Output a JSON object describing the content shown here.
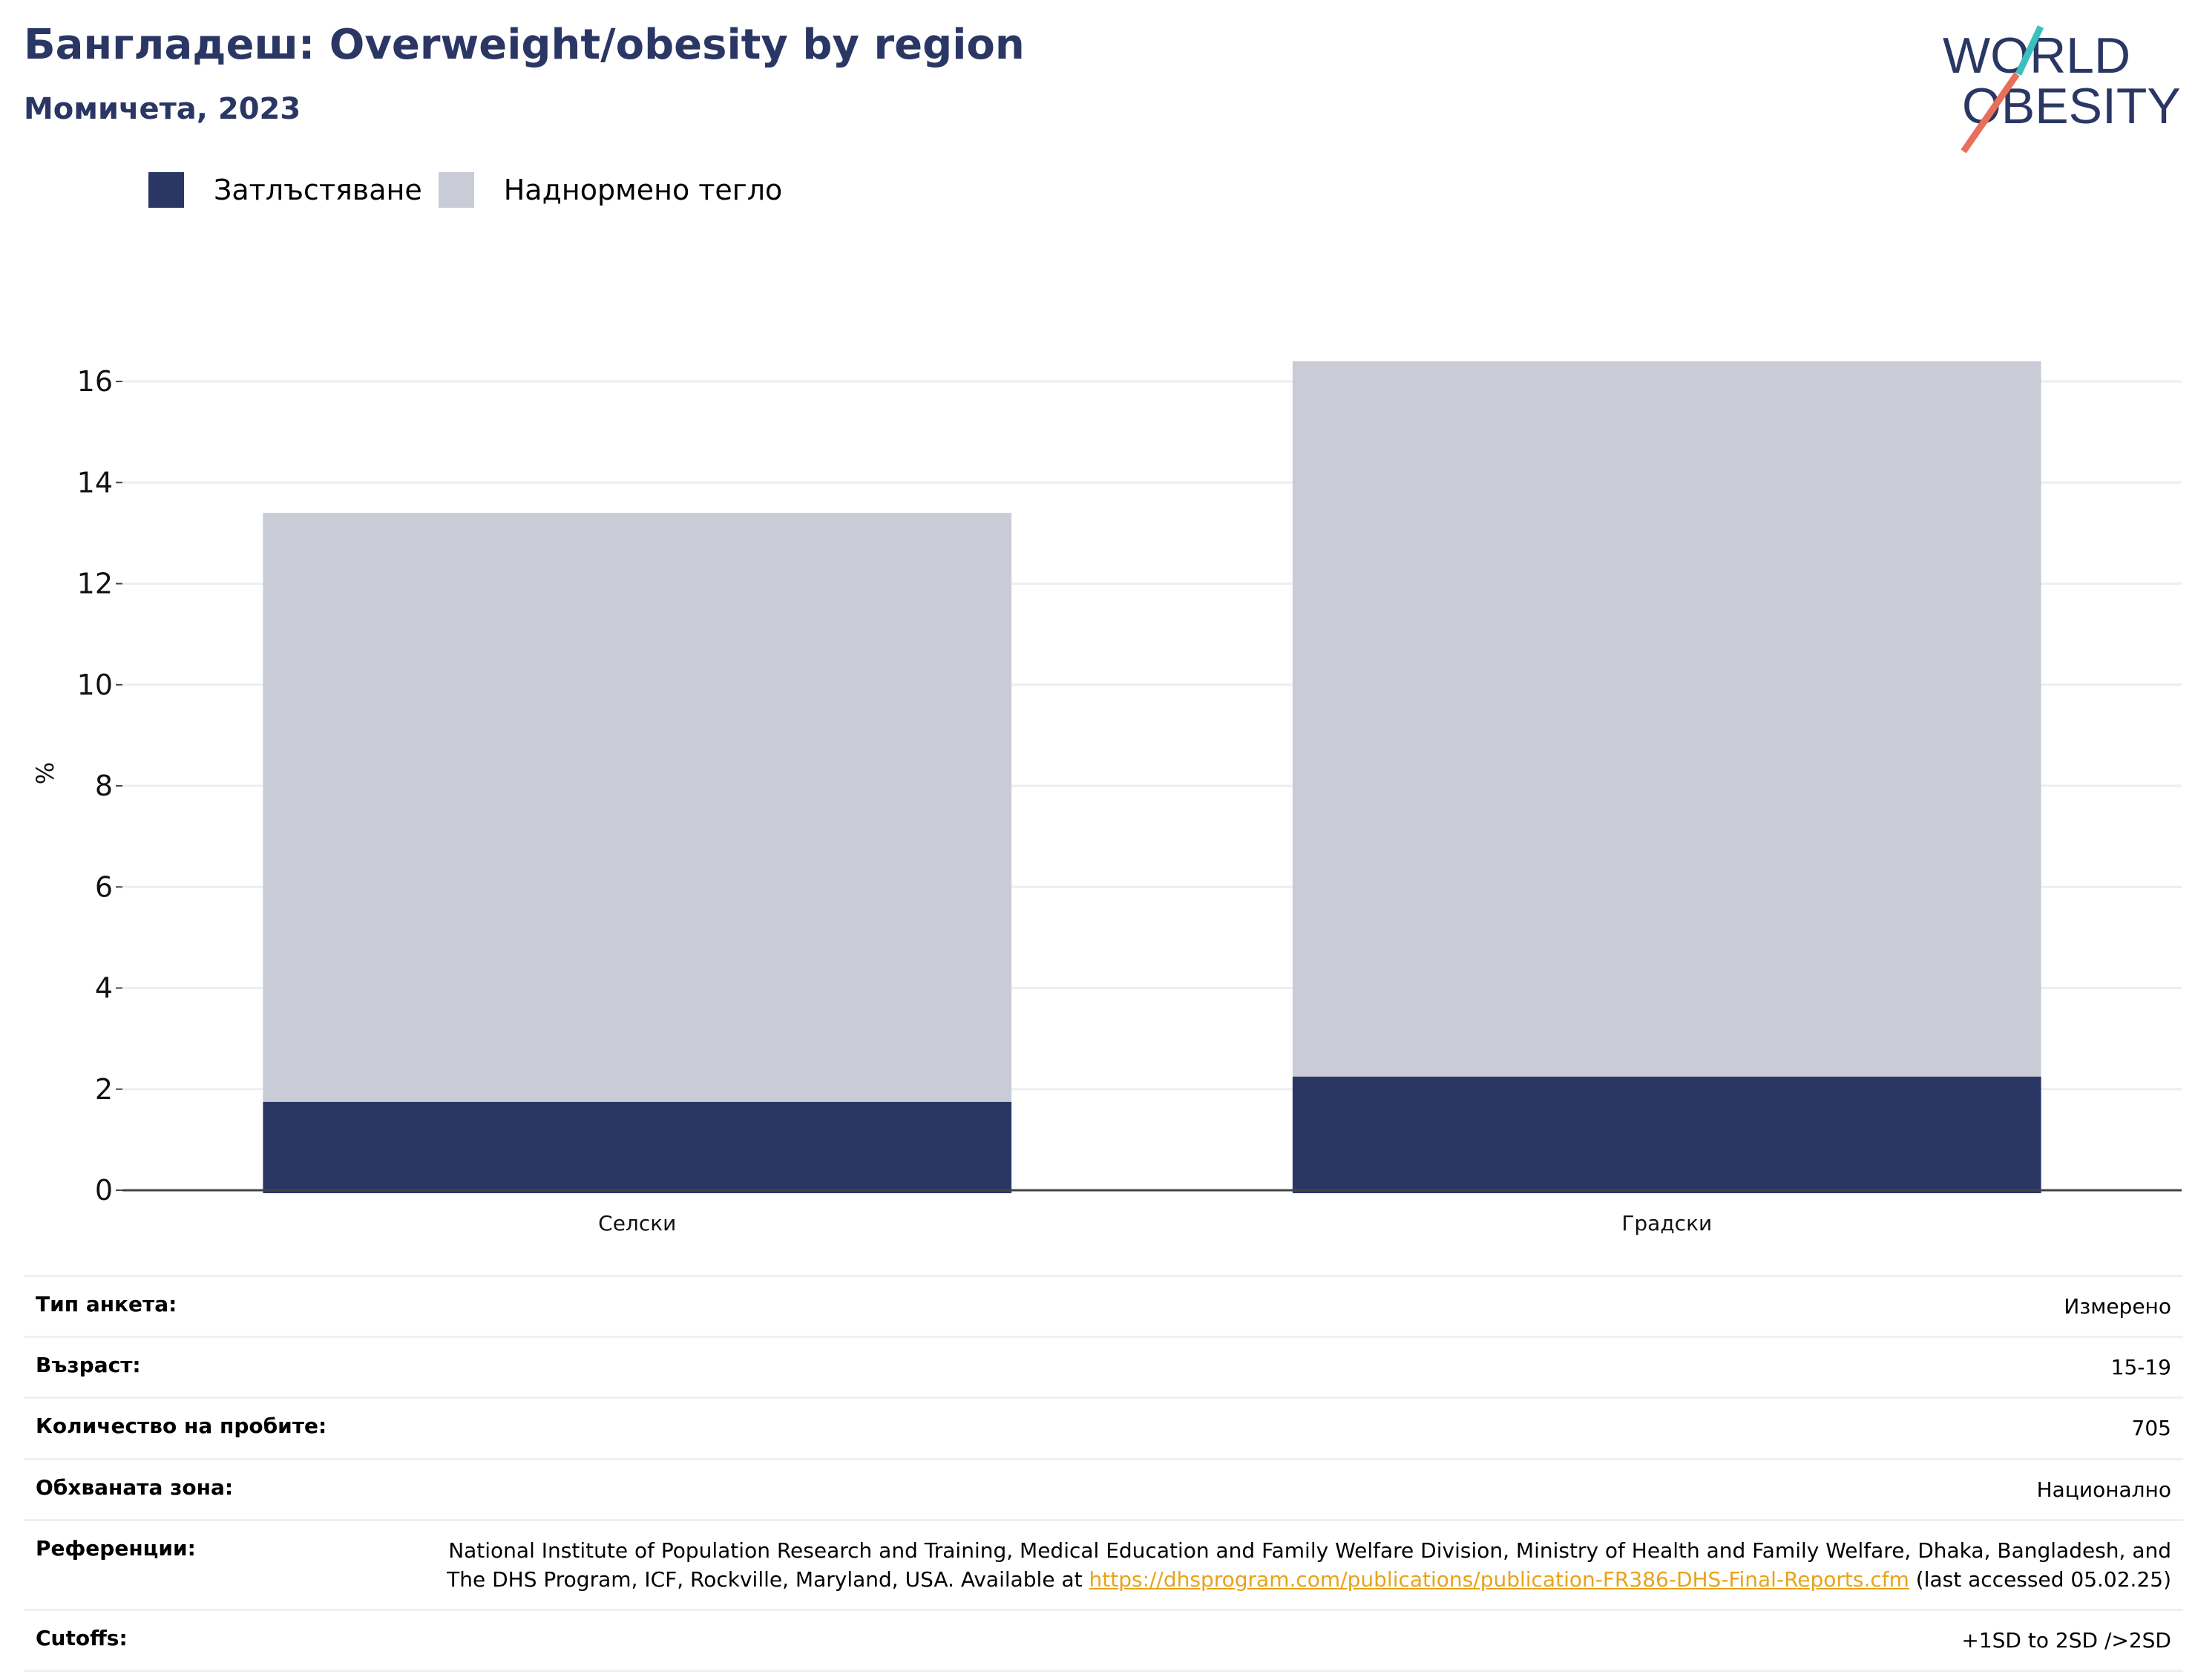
{
  "header": {
    "title": "Бангладеш: Overweight/obesity by region",
    "subtitle": "Момичета, 2023",
    "logo_line1": "WORLD",
    "logo_line2": "OBESITY"
  },
  "colors": {
    "obesity": "#2a3664",
    "overweight": "#c9cbd7",
    "title": "#2a3664",
    "logo_teal": "#3bbfbf",
    "logo_coral": "#e8705a",
    "link": "#e8a317"
  },
  "legend": {
    "obesity_label": "Затлъстяване",
    "overweight_label": "Наднормено тегло"
  },
  "chart_data": {
    "type": "bar",
    "stacked": true,
    "categories": [
      "Селски",
      "Градски"
    ],
    "series": [
      {
        "name": "Затлъстяване",
        "values": [
          1.75,
          2.25
        ]
      },
      {
        "name": "Наднормено тегло",
        "values": [
          11.65,
          14.15
        ]
      }
    ],
    "ylabel": "%",
    "xlabel": "",
    "ylim": [
      0,
      16.5
    ],
    "yticks": [
      0,
      2,
      4,
      6,
      8,
      10,
      12,
      14,
      16
    ],
    "grid": true,
    "legend_position": "top-left"
  },
  "info": {
    "survey_type_label": "Тип анкета:",
    "survey_type_value": "Измерено",
    "age_label": "Възраст:",
    "age_value": "15-19",
    "sample_label": "Количество на пробите:",
    "sample_value": "705",
    "area_label": "Обхваната зона:",
    "area_value": "Национално",
    "references_label": "Референции:",
    "references_text": "National Institute of Population Research and Training, Medical Education and Family Welfare Division, Ministry of Health and Family Welfare, Dhaka, Bangladesh, and The DHS Program, ICF, Rockville, Maryland, USA. Available at ",
    "references_link": "https://dhsprogram.com/publications/publication-FR386-DHS-Final-Reports.cfm",
    "references_suffix": " (last accessed 05.02.25)",
    "cutoffs_label": "Cutoffs:",
    "cutoffs_value": "+1SD to 2SD />2SD"
  }
}
